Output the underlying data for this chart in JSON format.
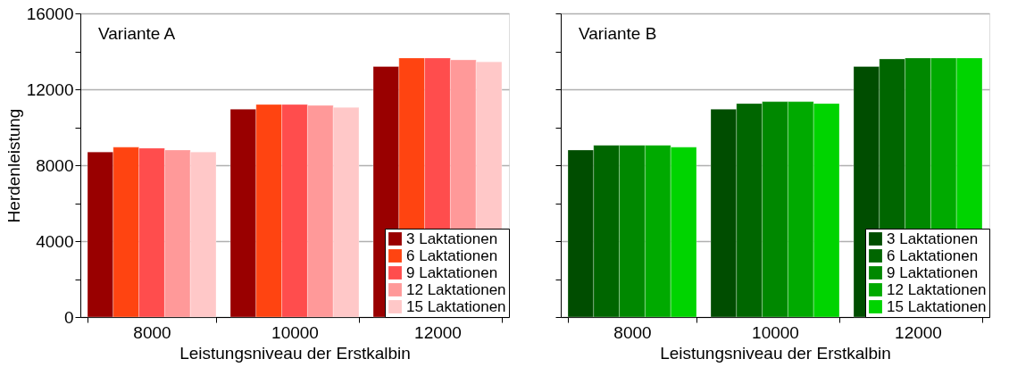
{
  "chart_data": [
    {
      "type": "bar",
      "title": "Variante A",
      "xlabel": "Leistungsniveau der Erstkalbin",
      "ylabel": "Herdenleistung",
      "categories": [
        "8000",
        "10000",
        "12000"
      ],
      "ylim": [
        0,
        16000
      ],
      "yticks": [
        0,
        {
          "value": 2000,
          "label": null
        },
        4000,
        {
          "value": 6000,
          "label": null
        },
        8000,
        {
          "value": 10000,
          "label": null
        },
        12000,
        {
          "value": 14000,
          "label": null
        },
        16000
      ],
      "grid": "y",
      "legend": "bottom right",
      "series": [
        {
          "name": "3 Laktationen",
          "color": "#990000",
          "values": [
            8700,
            10950,
            13200
          ]
        },
        {
          "name": "6 Laktationen",
          "color": "#ff4411",
          "values": [
            8950,
            11200,
            13650
          ]
        },
        {
          "name": "9 Laktationen",
          "color": "#ff4d4d",
          "values": [
            8900,
            11200,
            13650
          ]
        },
        {
          "name": "12 Laktationen",
          "color": "#ff9999",
          "values": [
            8800,
            11150,
            13550
          ]
        },
        {
          "name": "15 Laktationen",
          "color": "#ffc8c8",
          "values": [
            8700,
            11050,
            13450
          ]
        }
      ]
    },
    {
      "type": "bar",
      "title": "Variante B",
      "xlabel": "Leistungsniveau der Erstkalbin",
      "categories": [
        "8000",
        "10000",
        "12000"
      ],
      "ylim": [
        0,
        16000
      ],
      "yticks": [
        0,
        {
          "value": 2000,
          "label": null
        },
        4000,
        {
          "value": 6000,
          "label": null
        },
        8000,
        {
          "value": 10000,
          "label": null
        },
        12000,
        {
          "value": 14000,
          "label": null
        },
        16000
      ],
      "grid": "y",
      "legend": "bottom right",
      "tick_labels": "x",
      "series": [
        {
          "name": "3 Laktationen",
          "color": "#004d00",
          "values": [
            8800,
            10950,
            13200
          ]
        },
        {
          "name": "6 Laktationen",
          "color": "#006600",
          "values": [
            9050,
            11250,
            13600
          ]
        },
        {
          "name": "9 Laktationen",
          "color": "#008800",
          "values": [
            9050,
            11350,
            13650
          ]
        },
        {
          "name": "12 Laktationen",
          "color": "#00aa00",
          "values": [
            9050,
            11350,
            13650
          ]
        },
        {
          "name": "15 Laktationen",
          "color": "#00d400",
          "values": [
            8950,
            11250,
            13650
          ]
        }
      ]
    }
  ]
}
